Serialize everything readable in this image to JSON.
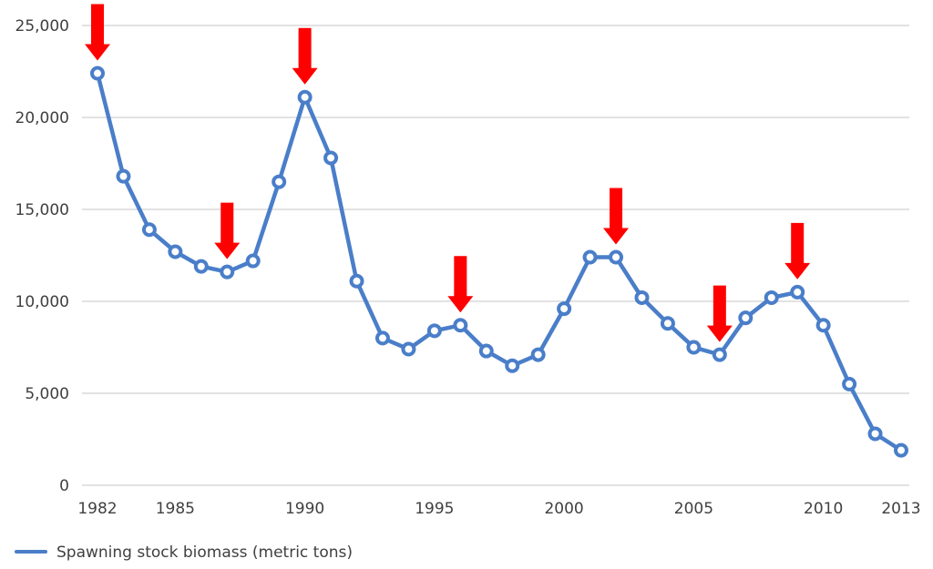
{
  "chart_data": {
    "type": "line",
    "title": "",
    "xlabel": "",
    "ylabel": "",
    "x": [
      1982,
      1983,
      1984,
      1985,
      1986,
      1987,
      1988,
      1989,
      1990,
      1991,
      1992,
      1993,
      1994,
      1995,
      1996,
      1997,
      1998,
      1999,
      2000,
      2001,
      2002,
      2003,
      2004,
      2005,
      2006,
      2007,
      2008,
      2009,
      2010,
      2011,
      2012,
      2013
    ],
    "series": [
      {
        "name": "Spawning stock biomass (metric tons)",
        "color": "#4a7ec9",
        "values": [
          22400,
          16800,
          13900,
          12700,
          11900,
          11600,
          12200,
          16500,
          21100,
          17800,
          11100,
          8000,
          7400,
          8400,
          8700,
          7300,
          6500,
          7100,
          9600,
          12400,
          12400,
          10200,
          8800,
          7500,
          7100,
          9100,
          10200,
          10500,
          8700,
          5500,
          2800,
          1900
        ]
      }
    ],
    "ylim": [
      0,
      25000
    ],
    "y_ticks": [
      "0",
      "5,000",
      "10,000",
      "15,000",
      "20,000",
      "25,000"
    ],
    "x_ticks": [
      "1982",
      "1985",
      "1990",
      "1995",
      "2000",
      "2005",
      "2010",
      "2013"
    ],
    "grid": "horizontal",
    "legend": {
      "placement": "bottom-left",
      "label": "Spawning stock biomass (metric tons)"
    },
    "annotations": {
      "type": "red-down-arrows",
      "color": "#ff0000",
      "years": [
        1982,
        1987,
        1990,
        1996,
        2002,
        2006,
        2009
      ]
    }
  }
}
